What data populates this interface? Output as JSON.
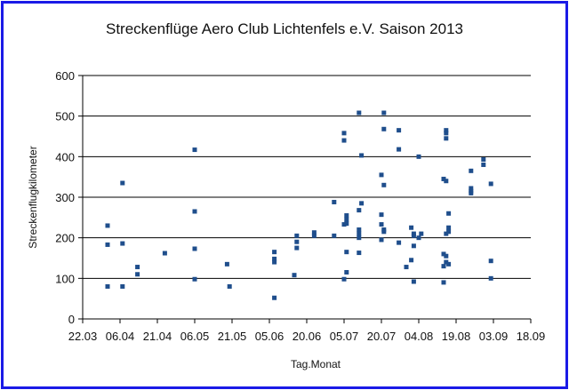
{
  "chart_data": {
    "type": "scatter",
    "title": "Streckenflüge Aero Club Lichtenfels e.V. Saison 2013",
    "xlabel": "Tag.Monat",
    "ylabel": "Streckenflugkilometer",
    "xlim": [
      "2013-03-22",
      "2013-09-18"
    ],
    "ylim": [
      0,
      600
    ],
    "x_ticks": [
      "22.03",
      "06.04",
      "21.04",
      "06.05",
      "21.05",
      "05.06",
      "20.06",
      "05.07",
      "20.07",
      "04.08",
      "19.08",
      "03.09",
      "18.09"
    ],
    "y_ticks": [
      "0",
      "100",
      "200",
      "300",
      "400",
      "500",
      "600"
    ],
    "grid": "horizontal",
    "marker_color": "#1f4e8c",
    "points": [
      {
        "x": "2013-04-01",
        "y": 230
      },
      {
        "x": "2013-04-01",
        "y": 183
      },
      {
        "x": "2013-04-01",
        "y": 80
      },
      {
        "x": "2013-04-07",
        "y": 335
      },
      {
        "x": "2013-04-07",
        "y": 186
      },
      {
        "x": "2013-04-07",
        "y": 80
      },
      {
        "x": "2013-04-13",
        "y": 128
      },
      {
        "x": "2013-04-13",
        "y": 110
      },
      {
        "x": "2013-04-24",
        "y": 162
      },
      {
        "x": "2013-05-06",
        "y": 417
      },
      {
        "x": "2013-05-06",
        "y": 265
      },
      {
        "x": "2013-05-06",
        "y": 173
      },
      {
        "x": "2013-05-06",
        "y": 98
      },
      {
        "x": "2013-05-19",
        "y": 135
      },
      {
        "x": "2013-05-20",
        "y": 80
      },
      {
        "x": "2013-06-07",
        "y": 165
      },
      {
        "x": "2013-06-07",
        "y": 148
      },
      {
        "x": "2013-06-07",
        "y": 140
      },
      {
        "x": "2013-06-07",
        "y": 52
      },
      {
        "x": "2013-06-15",
        "y": 108
      },
      {
        "x": "2013-06-16",
        "y": 205
      },
      {
        "x": "2013-06-16",
        "y": 190
      },
      {
        "x": "2013-06-16",
        "y": 175
      },
      {
        "x": "2013-06-23",
        "y": 213
      },
      {
        "x": "2013-06-23",
        "y": 205
      },
      {
        "x": "2013-07-01",
        "y": 288
      },
      {
        "x": "2013-07-01",
        "y": 205
      },
      {
        "x": "2013-07-05",
        "y": 458
      },
      {
        "x": "2013-07-05",
        "y": 440
      },
      {
        "x": "2013-07-05",
        "y": 233
      },
      {
        "x": "2013-07-05",
        "y": 98
      },
      {
        "x": "2013-07-06",
        "y": 255
      },
      {
        "x": "2013-07-06",
        "y": 245
      },
      {
        "x": "2013-07-06",
        "y": 235
      },
      {
        "x": "2013-07-06",
        "y": 165
      },
      {
        "x": "2013-07-06",
        "y": 115
      },
      {
        "x": "2013-07-11",
        "y": 508
      },
      {
        "x": "2013-07-11",
        "y": 268
      },
      {
        "x": "2013-07-11",
        "y": 220
      },
      {
        "x": "2013-07-11",
        "y": 210
      },
      {
        "x": "2013-07-11",
        "y": 200
      },
      {
        "x": "2013-07-11",
        "y": 163
      },
      {
        "x": "2013-07-12",
        "y": 403
      },
      {
        "x": "2013-07-12",
        "y": 285
      },
      {
        "x": "2013-07-20",
        "y": 355
      },
      {
        "x": "2013-07-20",
        "y": 257
      },
      {
        "x": "2013-07-20",
        "y": 233
      },
      {
        "x": "2013-07-20",
        "y": 195
      },
      {
        "x": "2013-07-21",
        "y": 508
      },
      {
        "x": "2013-07-21",
        "y": 468
      },
      {
        "x": "2013-07-21",
        "y": 330
      },
      {
        "x": "2013-07-21",
        "y": 220
      },
      {
        "x": "2013-07-21",
        "y": 215
      },
      {
        "x": "2013-07-27",
        "y": 465
      },
      {
        "x": "2013-07-27",
        "y": 418
      },
      {
        "x": "2013-07-27",
        "y": 188
      },
      {
        "x": "2013-07-30",
        "y": 128
      },
      {
        "x": "2013-08-01",
        "y": 225
      },
      {
        "x": "2013-08-01",
        "y": 145
      },
      {
        "x": "2013-08-02",
        "y": 210
      },
      {
        "x": "2013-08-02",
        "y": 205
      },
      {
        "x": "2013-08-02",
        "y": 180
      },
      {
        "x": "2013-08-02",
        "y": 92
      },
      {
        "x": "2013-08-04",
        "y": 400
      },
      {
        "x": "2013-08-04",
        "y": 200
      },
      {
        "x": "2013-08-05",
        "y": 210
      },
      {
        "x": "2013-08-14",
        "y": 345
      },
      {
        "x": "2013-08-14",
        "y": 160
      },
      {
        "x": "2013-08-14",
        "y": 130
      },
      {
        "x": "2013-08-14",
        "y": 90
      },
      {
        "x": "2013-08-15",
        "y": 465
      },
      {
        "x": "2013-08-15",
        "y": 458
      },
      {
        "x": "2013-08-15",
        "y": 445
      },
      {
        "x": "2013-08-15",
        "y": 340
      },
      {
        "x": "2013-08-15",
        "y": 210
      },
      {
        "x": "2013-08-15",
        "y": 155
      },
      {
        "x": "2013-08-15",
        "y": 140
      },
      {
        "x": "2013-08-16",
        "y": 260
      },
      {
        "x": "2013-08-16",
        "y": 225
      },
      {
        "x": "2013-08-16",
        "y": 215
      },
      {
        "x": "2013-08-16",
        "y": 135
      },
      {
        "x": "2013-08-25",
        "y": 365
      },
      {
        "x": "2013-08-25",
        "y": 322
      },
      {
        "x": "2013-08-25",
        "y": 315
      },
      {
        "x": "2013-08-25",
        "y": 310
      },
      {
        "x": "2013-08-30",
        "y": 393
      },
      {
        "x": "2013-08-30",
        "y": 380
      },
      {
        "x": "2013-09-02",
        "y": 333
      },
      {
        "x": "2013-09-02",
        "y": 143
      },
      {
        "x": "2013-09-02",
        "y": 100
      }
    ]
  }
}
